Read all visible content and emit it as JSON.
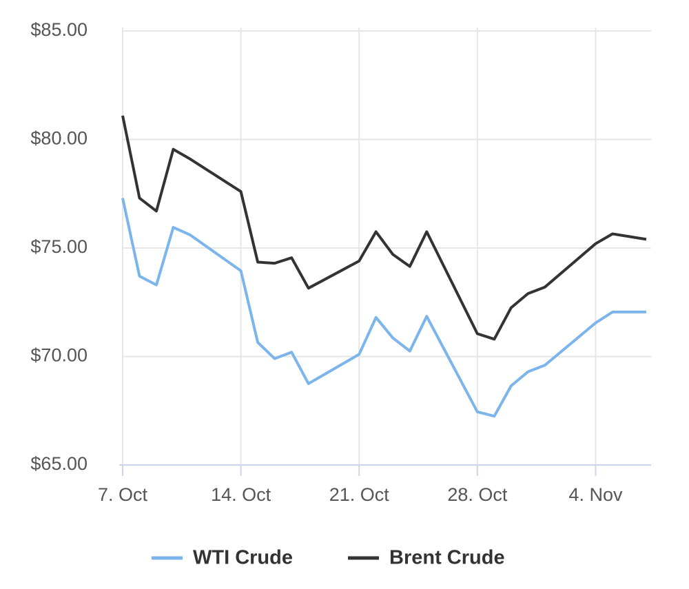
{
  "chart_data": {
    "type": "line",
    "x": [
      "7. Oct",
      "8. Oct",
      "9. Oct",
      "10. Oct",
      "11. Oct",
      "14. Oct",
      "15. Oct",
      "16. Oct",
      "17. Oct",
      "18. Oct",
      "21. Oct",
      "22. Oct",
      "23. Oct",
      "24. Oct",
      "25. Oct",
      "28. Oct",
      "29. Oct",
      "30. Oct",
      "31. Oct",
      "1. Nov",
      "4. Nov",
      "5. Nov",
      "7. Nov"
    ],
    "series": [
      {
        "name": "WTI Crude",
        "color": "#7cb5ec",
        "values": [
          77.3,
          73.7,
          73.3,
          75.95,
          75.6,
          73.95,
          70.65,
          69.9,
          70.2,
          68.75,
          70.1,
          71.8,
          70.85,
          70.25,
          71.85,
          67.45,
          67.25,
          68.65,
          69.3,
          69.6,
          71.55,
          72.05,
          72.05
        ]
      },
      {
        "name": "Brent Crude",
        "color": "#333333",
        "values": [
          81.1,
          77.3,
          76.7,
          79.55,
          79.1,
          77.6,
          74.35,
          74.3,
          74.55,
          73.15,
          74.4,
          75.75,
          74.7,
          74.15,
          75.75,
          71.05,
          70.8,
          72.25,
          72.9,
          73.2,
          75.2,
          75.65,
          75.4
        ]
      }
    ],
    "ylim": [
      65,
      85
    ],
    "yticks": [
      {
        "value": 65,
        "label": "$65.00"
      },
      {
        "value": 70,
        "label": "$70.00"
      },
      {
        "value": 75,
        "label": "$75.00"
      },
      {
        "value": 80,
        "label": "$80.00"
      },
      {
        "value": 85,
        "label": "$85.00"
      }
    ],
    "xticks": [
      "7. Oct",
      "14. Oct",
      "21. Oct",
      "28. Oct",
      "4. Nov"
    ],
    "grid": true,
    "legend": "bottom"
  }
}
